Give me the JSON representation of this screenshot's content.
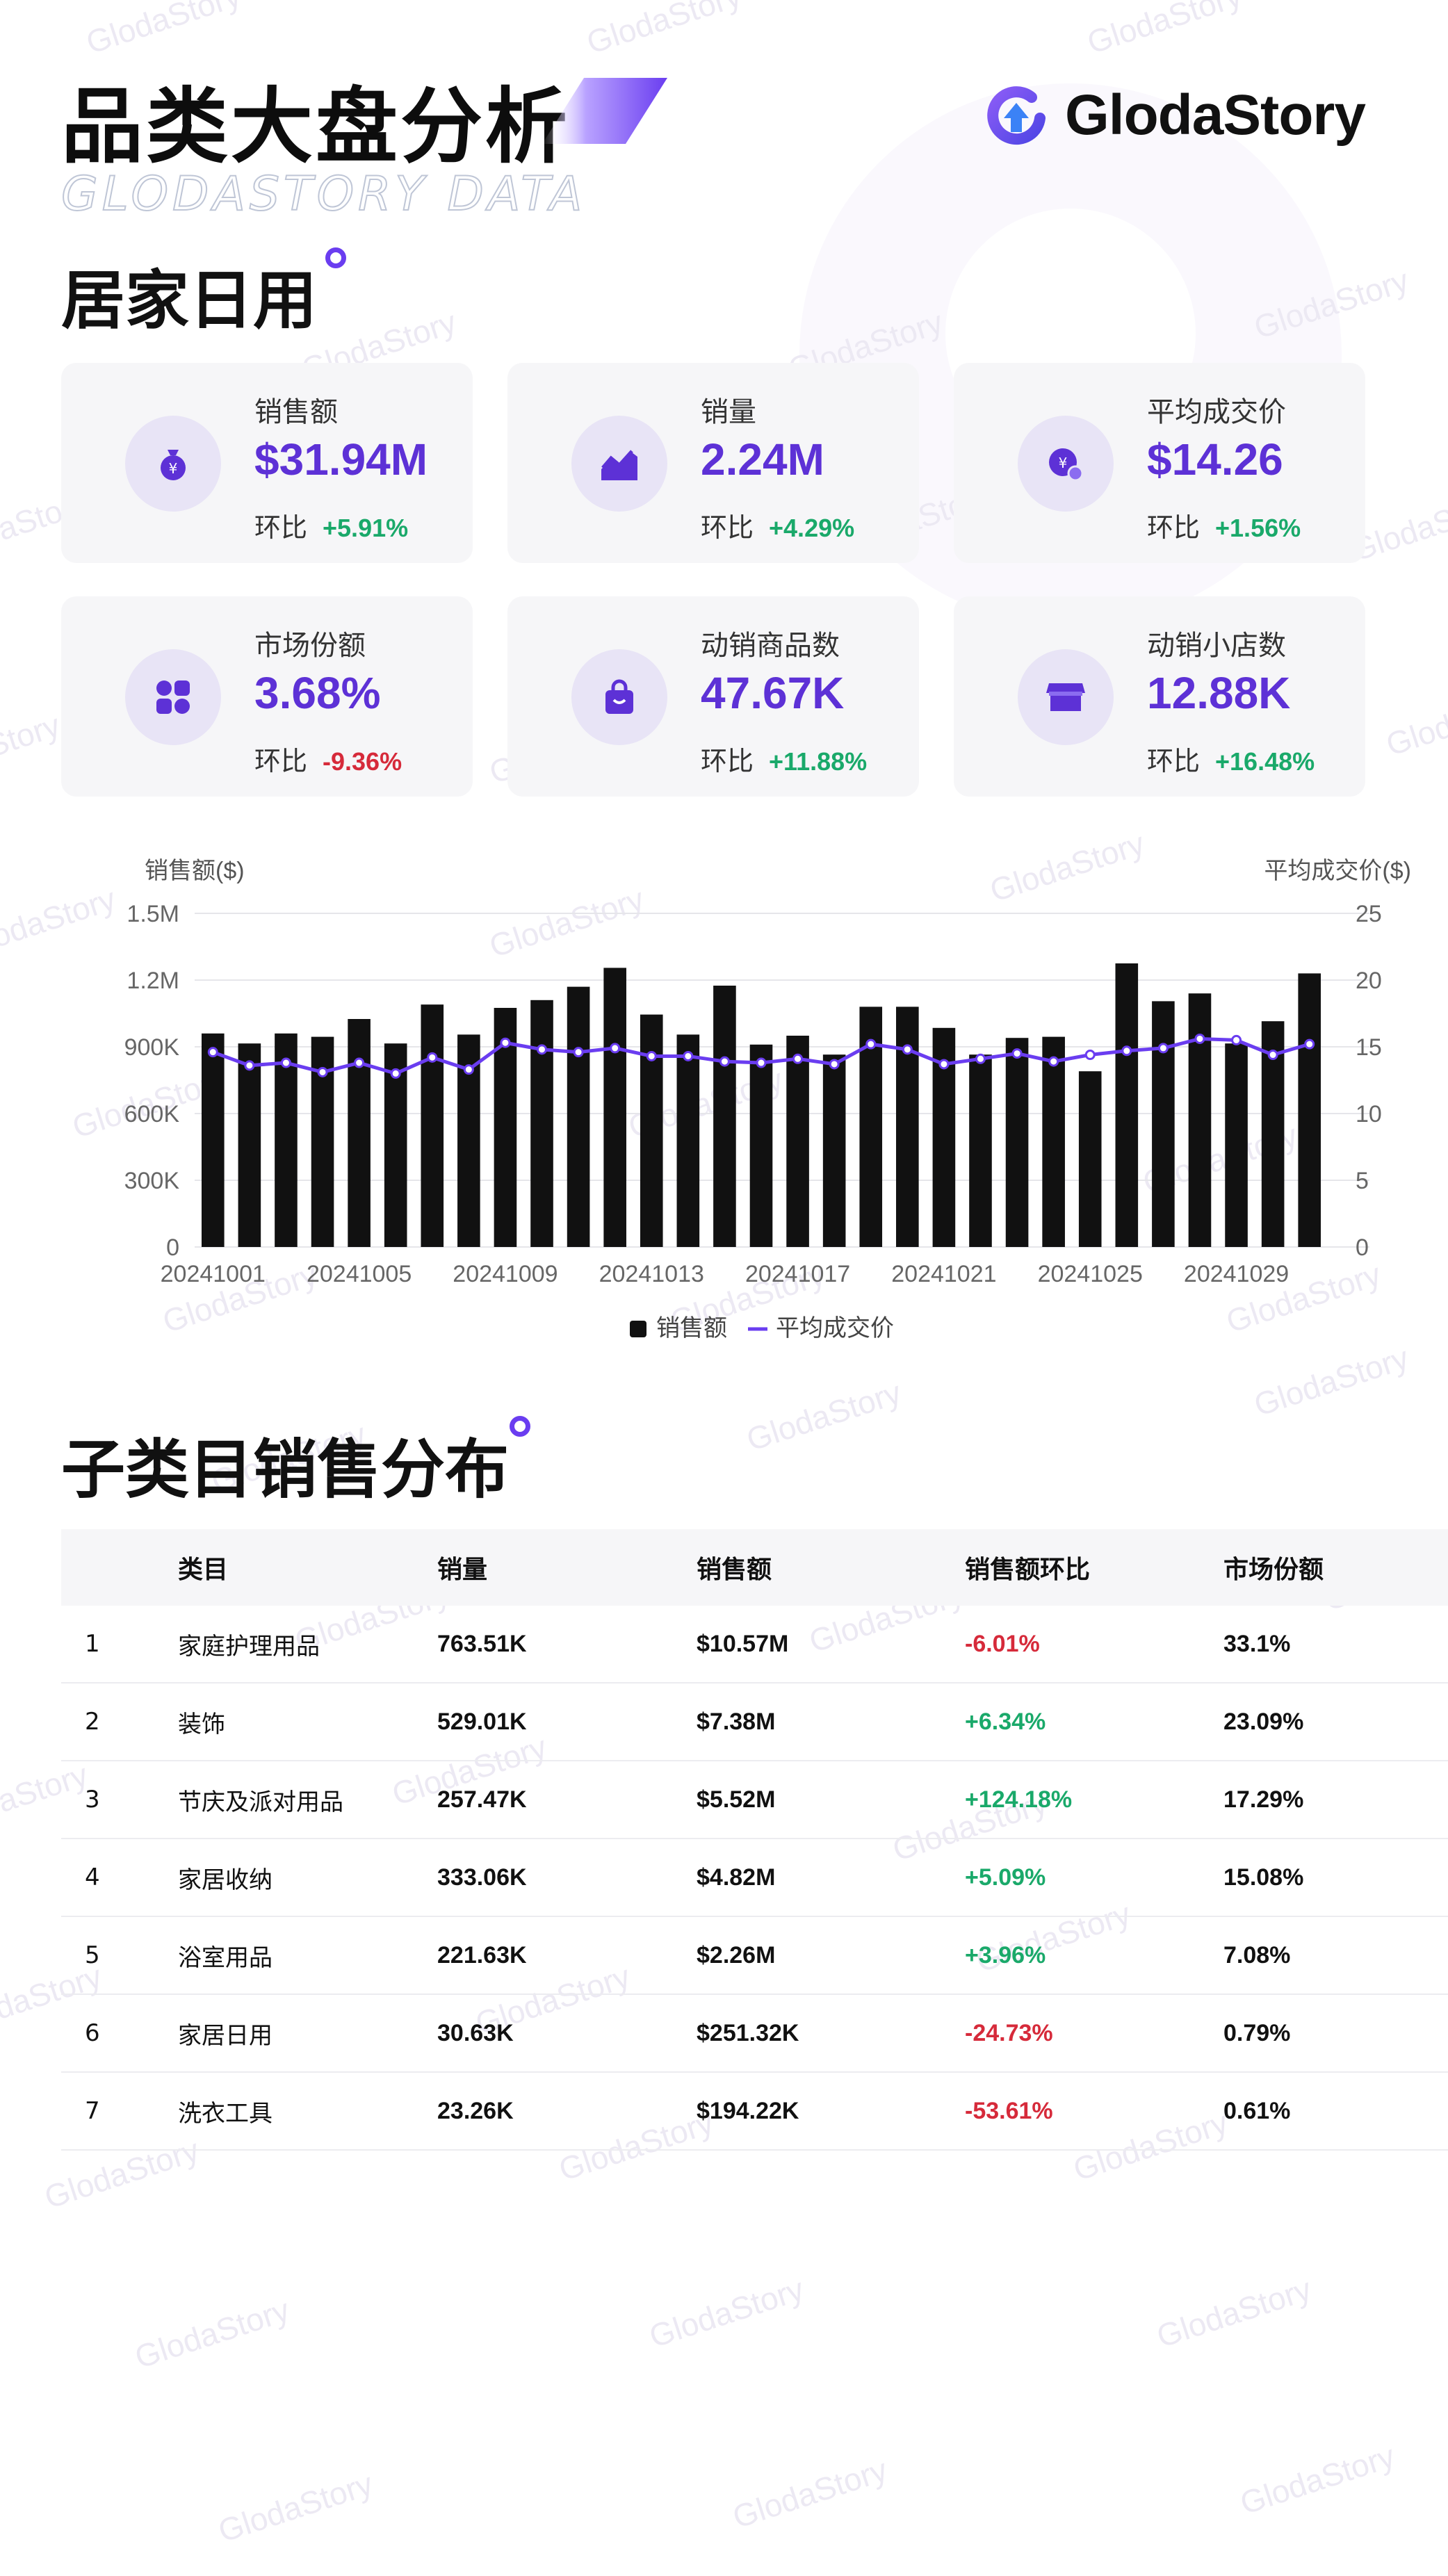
{
  "watermark": "GlodaStory",
  "header": {
    "title": "品类大盘分析",
    "subtitle": "GLODASTORY DATA",
    "brand": "GlodaStory",
    "category": "居家日用"
  },
  "colors": {
    "accent": "#5d31d6",
    "positive": "#1aa96a",
    "negative": "#d62a3a",
    "bar": "#111111",
    "line": "#6a3df0"
  },
  "kpis": [
    {
      "label": "销售额",
      "value": "$31.94M",
      "mom_label": "环比",
      "mom": "+5.91%",
      "trend": "up",
      "icon": "money-bag-icon"
    },
    {
      "label": "销量",
      "value": "2.24M",
      "mom_label": "环比",
      "mom": "+4.29%",
      "trend": "up",
      "icon": "area-chart-icon"
    },
    {
      "label": "平均成交价",
      "value": "$14.26",
      "mom_label": "环比",
      "mom": "+1.56%",
      "trend": "up",
      "icon": "yen-coin-icon"
    },
    {
      "label": "市场份额",
      "value": "3.68%",
      "mom_label": "环比",
      "mom": "-9.36%",
      "trend": "down",
      "icon": "grid-petals-icon"
    },
    {
      "label": "动销商品数",
      "value": "47.67K",
      "mom_label": "环比",
      "mom": "+11.88%",
      "trend": "up",
      "icon": "shopping-bag-icon"
    },
    {
      "label": "动销小店数",
      "value": "12.88K",
      "mom_label": "环比",
      "mom": "+16.48%",
      "trend": "up",
      "icon": "store-icon"
    }
  ],
  "chart_data": {
    "type": "bar",
    "ylabel_left": "销售额($)",
    "ylabel_right": "平均成交价($)",
    "ylim_left": [
      0,
      1500000
    ],
    "ylim_right": [
      0,
      25
    ],
    "yticks_left": [
      "0",
      "300K",
      "600K",
      "900K",
      "1.2M",
      "1.5M"
    ],
    "yticks_right": [
      "0",
      "5",
      "10",
      "15",
      "20",
      "25"
    ],
    "x_tick_labels": [
      "20241001",
      "20241005",
      "20241009",
      "20241013",
      "20241017",
      "20241021",
      "20241025",
      "20241029"
    ],
    "categories": [
      "20241001",
      "20241002",
      "20241003",
      "20241004",
      "20241005",
      "20241006",
      "20241007",
      "20241008",
      "20241009",
      "20241010",
      "20241011",
      "20241012",
      "20241013",
      "20241014",
      "20241015",
      "20241016",
      "20241017",
      "20241018",
      "20241019",
      "20241020",
      "20241021",
      "20241022",
      "20241023",
      "20241024",
      "20241025",
      "20241026",
      "20241027",
      "20241028",
      "20241029",
      "20241030",
      "20241031"
    ],
    "series": [
      {
        "name": "销售额",
        "type": "bar",
        "axis": "left",
        "values": [
          960000,
          915000,
          960000,
          945000,
          1025000,
          915000,
          1090000,
          955000,
          1075000,
          1110000,
          1170000,
          1255000,
          1045000,
          955000,
          1175000,
          910000,
          950000,
          865000,
          1080000,
          1080000,
          985000,
          865000,
          940000,
          945000,
          790000,
          1275000,
          1105000,
          1140000,
          915000,
          1015000,
          1230000
        ]
      },
      {
        "name": "平均成交价",
        "type": "line",
        "axis": "right",
        "values": [
          14.6,
          13.6,
          13.8,
          13.1,
          13.8,
          13.0,
          14.2,
          13.3,
          15.3,
          14.8,
          14.6,
          14.9,
          14.3,
          14.3,
          13.9,
          13.8,
          14.1,
          13.7,
          15.2,
          14.8,
          13.7,
          14.1,
          14.5,
          13.9,
          14.4,
          14.7,
          14.9,
          15.6,
          15.5,
          14.4,
          15.2
        ]
      }
    ],
    "legend": [
      "销售额",
      "平均成交价"
    ],
    "legend_position": "bottom-center",
    "grid": true
  },
  "subcategory": {
    "title": "子类目销售分布",
    "columns": [
      "",
      "类目",
      "销量",
      "销售额",
      "销售额环比",
      "市场份额"
    ],
    "rows": [
      {
        "rank": "1",
        "name": "家庭护理用品",
        "volume": "763.51K",
        "sales": "$10.57M",
        "mom": "-6.01%",
        "trend": "down",
        "share": "33.1%"
      },
      {
        "rank": "2",
        "name": "装饰",
        "volume": "529.01K",
        "sales": "$7.38M",
        "mom": "+6.34%",
        "trend": "up",
        "share": "23.09%"
      },
      {
        "rank": "3",
        "name": "节庆及派对用品",
        "volume": "257.47K",
        "sales": "$5.52M",
        "mom": "+124.18%",
        "trend": "up",
        "share": "17.29%"
      },
      {
        "rank": "4",
        "name": "家居收纳",
        "volume": "333.06K",
        "sales": "$4.82M",
        "mom": "+5.09%",
        "trend": "up",
        "share": "15.08%"
      },
      {
        "rank": "5",
        "name": "浴室用品",
        "volume": "221.63K",
        "sales": "$2.26M",
        "mom": "+3.96%",
        "trend": "up",
        "share": "7.08%"
      },
      {
        "rank": "6",
        "name": "家居日用",
        "volume": "30.63K",
        "sales": "$251.32K",
        "mom": "-24.73%",
        "trend": "down",
        "share": "0.79%"
      },
      {
        "rank": "7",
        "name": "洗衣工具",
        "volume": "23.26K",
        "sales": "$194.22K",
        "mom": "-53.61%",
        "trend": "down",
        "share": "0.61%"
      }
    ]
  }
}
